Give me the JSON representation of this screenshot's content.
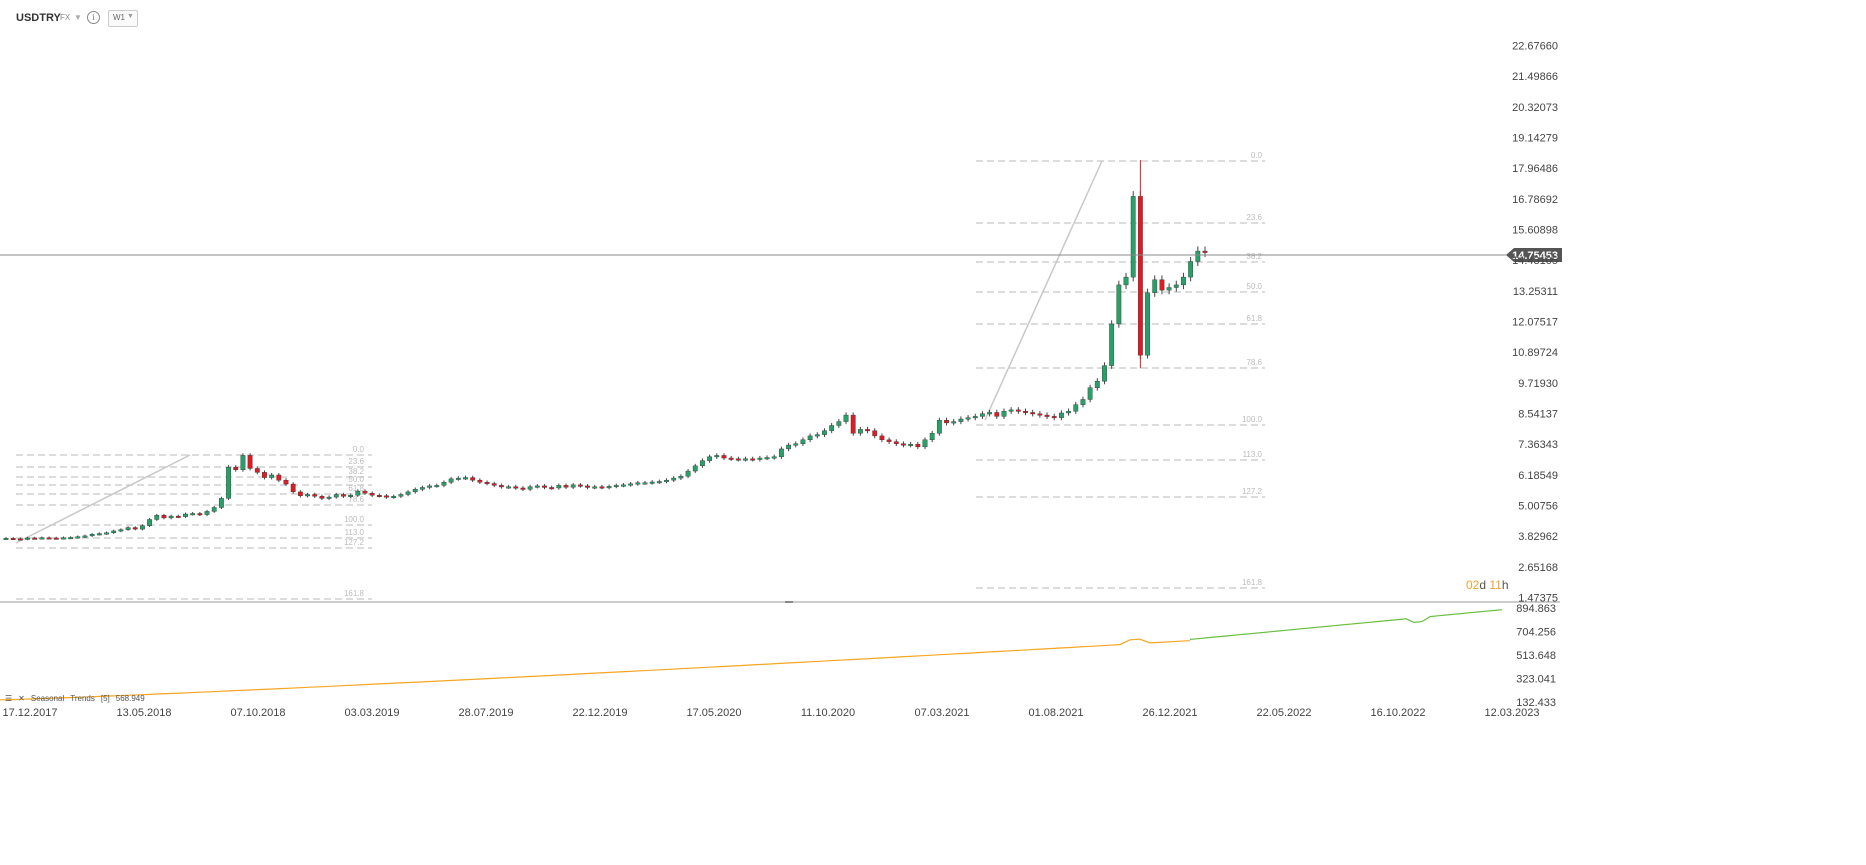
{
  "header": {
    "symbol": "USDTRY",
    "market": "FX",
    "timeframe": "W1"
  },
  "countdown": {
    "days": "02",
    "days_unit": "d",
    "hours": "11",
    "hours_unit": "h"
  },
  "indicator": {
    "name": "Seasonal",
    "name2": "Trends",
    "param": "[5]",
    "value": "568.949"
  },
  "colors": {
    "up": "#26a269",
    "down": "#e01b24",
    "line_orange": "#f5a623",
    "line_green": "#6abf3f",
    "last_price_bg": "#555555",
    "fib": "#c8c8c8"
  },
  "chart_data": [
    {
      "type": "candlestick",
      "title": "USDTRY",
      "x_tick_labels": [
        "17.12.2017",
        "13.05.2018",
        "07.10.2018",
        "03.03.2019",
        "28.07.2019",
        "22.12.2019",
        "17.05.2020",
        "11.10.2020",
        "07.03.2021",
        "01.08.2021",
        "26.12.2021",
        "22.05.2022",
        "16.10.2022",
        "12.03.2023"
      ],
      "y_tick_labels": [
        "22.67660",
        "21.49866",
        "20.32073",
        "19.14279",
        "17.96486",
        "16.78692",
        "15.60898",
        "14.43105",
        "13.25311",
        "12.07517",
        "10.89724",
        "9.71930",
        "8.54137",
        "7.36343",
        "6.18549",
        "5.00756",
        "3.82962",
        "2.65168",
        "1.47375"
      ],
      "ylim": [
        1.47375,
        22.6766
      ],
      "last_price": "14.75453",
      "approximate_weekly_closes": [
        3.77,
        3.75,
        3.74,
        3.78,
        3.77,
        3.79,
        3.78,
        3.77,
        3.79,
        3.8,
        3.83,
        3.86,
        3.92,
        3.95,
        3.98,
        4.05,
        4.1,
        4.18,
        4.12,
        4.25,
        4.49,
        4.65,
        4.55,
        4.62,
        4.6,
        4.7,
        4.72,
        4.68,
        4.8,
        4.95,
        5.3,
        6.5,
        6.4,
        6.95,
        6.45,
        6.3,
        6.1,
        6.2,
        6.0,
        5.85,
        5.55,
        5.4,
        5.45,
        5.38,
        5.3,
        5.35,
        5.45,
        5.38,
        5.42,
        5.58,
        5.5,
        5.42,
        5.4,
        5.35,
        5.38,
        5.45,
        5.55,
        5.65,
        5.72,
        5.78,
        5.8,
        5.92,
        6.05,
        6.08,
        6.1,
        6.0,
        5.92,
        5.87,
        5.8,
        5.74,
        5.75,
        5.7,
        5.65,
        5.75,
        5.78,
        5.72,
        5.7,
        5.8,
        5.73,
        5.82,
        5.78,
        5.72,
        5.75,
        5.72,
        5.76,
        5.8,
        5.82,
        5.86,
        5.9,
        5.9,
        5.93,
        5.95,
        6.0,
        6.08,
        6.15,
        6.35,
        6.55,
        6.75,
        6.9,
        6.95,
        6.85,
        6.82,
        6.8,
        6.82,
        6.8,
        6.85,
        6.87,
        6.9,
        7.2,
        7.35,
        7.4,
        7.55,
        7.7,
        7.75,
        7.9,
        8.1,
        8.25,
        8.5,
        7.8,
        7.95,
        7.9,
        7.7,
        7.55,
        7.48,
        7.4,
        7.35,
        7.38,
        7.28,
        7.55,
        7.8,
        8.3,
        8.2,
        8.25,
        8.35,
        8.4,
        8.45,
        8.55,
        8.6,
        8.45,
        8.65,
        8.7,
        8.65,
        8.6,
        8.55,
        8.5,
        8.45,
        8.4,
        8.58,
        8.65,
        8.9,
        9.1,
        9.55,
        9.8,
        10.4,
        12.0,
        13.5,
        13.8,
        16.9,
        10.8,
        13.2,
        13.7,
        13.3,
        13.4,
        13.5,
        13.8,
        14.4,
        14.8,
        14.75
      ]
    },
    {
      "type": "line",
      "title": "Seasonal Trends [5]",
      "y_tick_labels": [
        "894.863",
        "704.256",
        "513.648",
        "323.041",
        "132.433"
      ],
      "ylim": [
        132.433,
        894.863
      ],
      "current_value": "568.949"
    }
  ],
  "fib_sets": [
    {
      "levels": [
        "0.0",
        "23.6",
        "38.2",
        "50.0",
        "61.8",
        "78.6",
        "100.0",
        "113.0",
        "127.2",
        "161.8"
      ]
    },
    {
      "levels": [
        "0.0",
        "23.6",
        "38.2",
        "50.0",
        "61.8",
        "78.6",
        "100.0",
        "113.0",
        "127.2",
        "161.8"
      ]
    }
  ]
}
